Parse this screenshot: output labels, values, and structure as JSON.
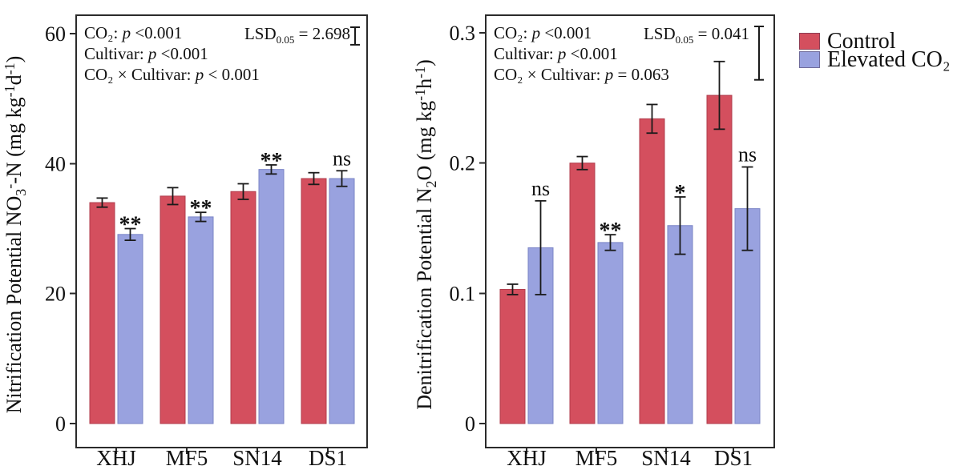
{
  "colors": {
    "control": "#d44f5e",
    "control_edge": "#b03c4c",
    "elevated": "#99a2df",
    "elevated_edge": "#7a84c6",
    "frame": "#2b2b2b",
    "error_bar": "#1a1a1a",
    "text": "#111111"
  },
  "legend": {
    "items": [
      {
        "label": "Control",
        "color": "#d44f5e"
      },
      {
        "label": "Elevated CO₂",
        "color": "#99a2df"
      }
    ]
  },
  "chart_data": [
    {
      "id": "nitrification",
      "type": "bar",
      "title": "",
      "xlabel": "",
      "ylabel": "Nitrification Potential  NO₃⁻-N (mg kg⁻¹d⁻¹)",
      "ylabel_segments": [
        [
          "Nitrification Potential  NO"
        ],
        [
          "3",
          "sub"
        ],
        [
          "-",
          "sup"
        ],
        [
          "-N (mg kg"
        ],
        [
          "-1",
          "sup"
        ],
        [
          "d"
        ],
        [
          "-1",
          "sup"
        ],
        [
          ")"
        ]
      ],
      "categories": [
        "XHJ",
        "MF5",
        "SN14",
        "DS1"
      ],
      "series": [
        {
          "name": "Control",
          "values": [
            34.0,
            35.0,
            35.7,
            37.7
          ],
          "errors": [
            0.7,
            1.3,
            1.2,
            0.9
          ]
        },
        {
          "name": "Elevated CO₂",
          "values": [
            29.1,
            31.8,
            39.1,
            37.7
          ],
          "errors": [
            0.9,
            0.7,
            0.7,
            1.2
          ]
        }
      ],
      "significance": [
        "**",
        "**",
        "**",
        "ns"
      ],
      "ylim": [
        0,
        60
      ],
      "yticks": [
        0,
        20,
        40,
        60
      ],
      "ytick_labels": [
        "0",
        "20",
        "40",
        "60"
      ],
      "grid": false,
      "lsd_value": 2.698,
      "stats": [
        {
          "pre": "CO₂: ",
          "p": "p",
          "post": " <0.001"
        },
        {
          "pre": "Cultivar: ",
          "p": "p",
          "post": " <0.001"
        },
        {
          "pre": "CO₂ × Cultivar: ",
          "p": "p",
          "post": " < 0.001"
        }
      ],
      "lsd": {
        "prefix": "LSD",
        "sub": "0.05",
        "mid_value": " = 2.698"
      }
    },
    {
      "id": "denitrification",
      "type": "bar",
      "title": "",
      "xlabel": "",
      "ylabel": "Denitrification Potential  N₂O (mg kg⁻¹h⁻¹)",
      "ylabel_segments": [
        [
          "Denitrification Potential  N"
        ],
        [
          "2",
          "sub"
        ],
        [
          "O (mg kg"
        ],
        [
          "-1",
          "sup"
        ],
        [
          "h"
        ],
        [
          "-1",
          "sup"
        ],
        [
          ")"
        ]
      ],
      "categories": [
        "XHJ",
        "MF5",
        "SN14",
        "DS1"
      ],
      "series": [
        {
          "name": "Control",
          "values": [
            0.103,
            0.2,
            0.234,
            0.252
          ],
          "errors": [
            0.004,
            0.005,
            0.011,
            0.026
          ]
        },
        {
          "name": "Elevated CO₂",
          "values": [
            0.135,
            0.139,
            0.152,
            0.165
          ],
          "errors": [
            0.036,
            0.006,
            0.022,
            0.032
          ]
        }
      ],
      "significance": [
        "ns",
        "**",
        "*",
        "ns"
      ],
      "ylim": [
        0,
        0.3
      ],
      "yticks": [
        0,
        0.1,
        0.2,
        0.3
      ],
      "ytick_labels": [
        "0",
        "0.1",
        "0.2",
        "0.3"
      ],
      "grid": false,
      "lsd_value": 0.041,
      "stats": [
        {
          "pre": "CO₂: ",
          "p": "p",
          "post": " <0.001"
        },
        {
          "pre": "Cultivar: ",
          "p": "p",
          "post": " <0.001"
        },
        {
          "pre": "CO₂ × Cultivar: ",
          "p": "p",
          "post": " = 0.063"
        }
      ],
      "lsd": {
        "prefix": "LSD",
        "sub": "0.05",
        "mid_value": " = 0.041"
      }
    }
  ]
}
